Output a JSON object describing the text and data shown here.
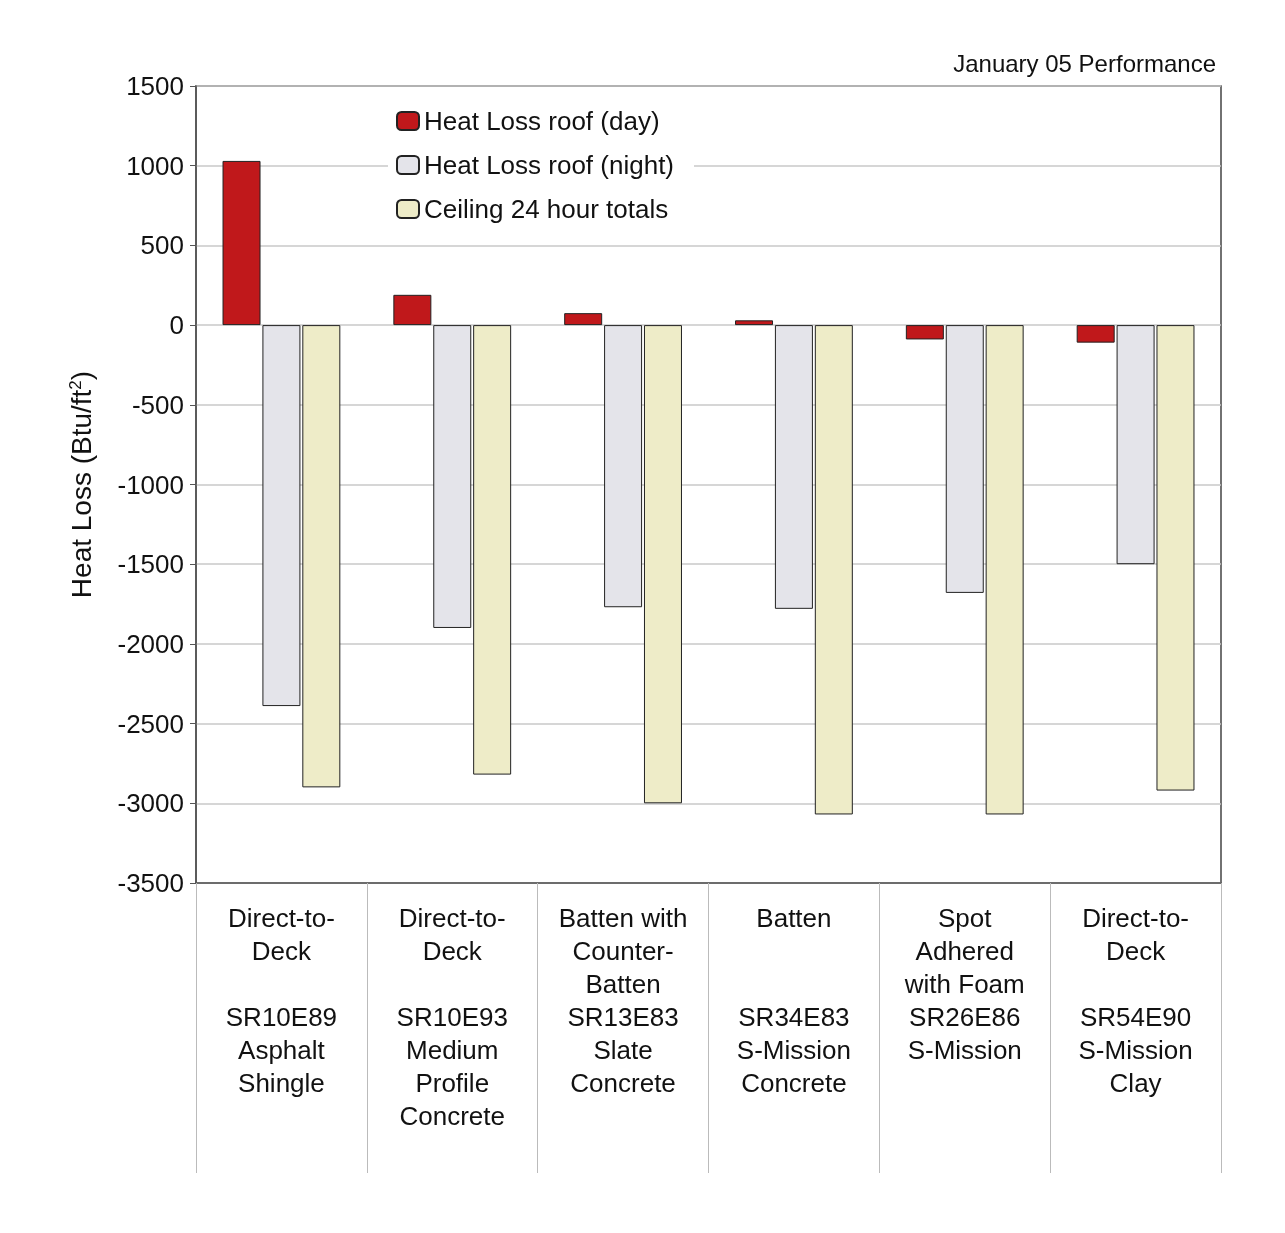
{
  "chart_data": {
    "type": "bar",
    "title": "January 05 Performance",
    "ylabel": "Heat Loss (Btu/ft$^{2}$)",
    "categories": [
      "Direct-to-\nDeck\n\nSR10E89\nAsphalt\nShingle",
      "Direct-to-\nDeck\n\nSR10E93\nMedium\nProfile\nConcrete",
      "Batten with\nCounter-\nBatten\nSR13E83\nSlate\nConcrete",
      "Batten\n\n\nSR34E83\nS-Mission\nConcrete",
      "Spot\nAdhered\nwith Foam\nSR26E86\nS-Mission",
      "Direct-to-\nDeck\n\nSR54E90\nS-Mission\nClay"
    ],
    "series": [
      {
        "name": "Heat Loss roof (day)",
        "color": "#c0181b",
        "values": [
          1030,
          190,
          75,
          30,
          -90,
          -110
        ]
      },
      {
        "name": "Heat Loss roof (night)",
        "color": "#e4e4ea",
        "values": [
          -2390,
          -1900,
          -1770,
          -1780,
          -1680,
          -1500
        ]
      },
      {
        "name": "Ceiling 24 hour totals",
        "color": "#eeecc8",
        "values": [
          -2900,
          -2820,
          -3000,
          -3070,
          -3070,
          -2920
        ]
      }
    ],
    "ylim": [
      -3500,
      1500
    ],
    "yticks": [
      -3500,
      -3000,
      -2500,
      -2000,
      -1500,
      -1000,
      -500,
      0,
      500,
      1000,
      1500
    ],
    "grid": "y",
    "legend": "top left"
  }
}
